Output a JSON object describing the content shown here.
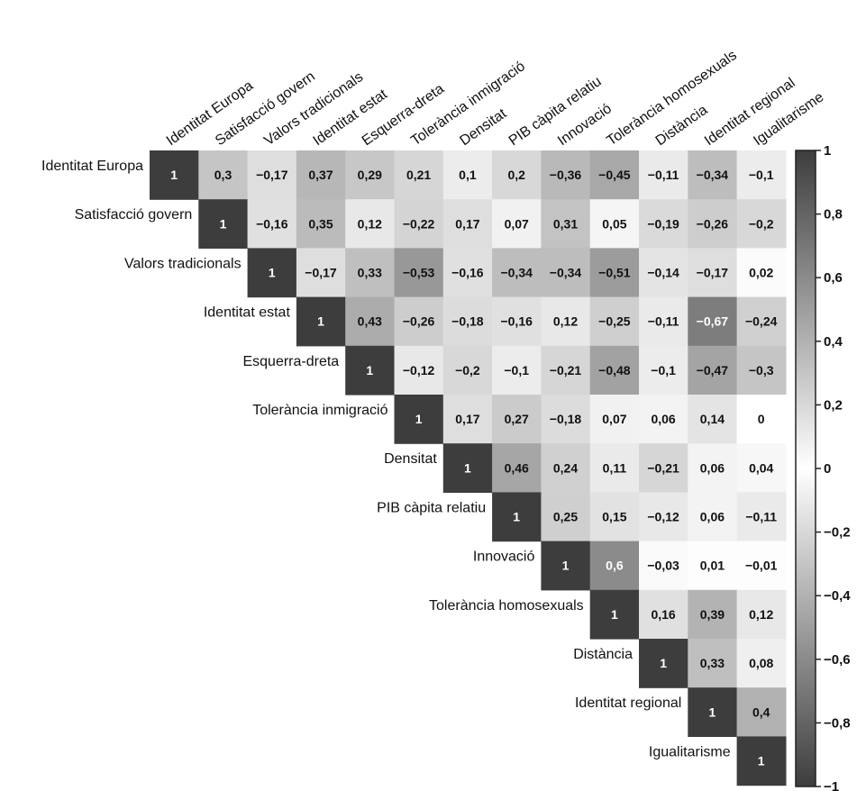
{
  "chart_data": {
    "type": "heatmap",
    "title": "",
    "variables": [
      "Identitat Europa",
      "Satisfacció govern",
      "Valors tradicionals",
      "Identitat estat",
      "Esquerra-dreta",
      "Tolerància inmigració",
      "Densitat",
      "PIB càpita relatiu",
      "Innovació",
      "Tolerància homosexuals",
      "Distància",
      "Identitat regional",
      "Igualitarisme"
    ],
    "matrix_upper": [
      [
        "1",
        "0,3",
        "-0,17",
        "0,37",
        "0,29",
        "0,21",
        "0,1",
        "0,2",
        "-0,36",
        "-0,45",
        "-0,11",
        "-0,34",
        "-0,1"
      ],
      [
        "1",
        "-0,16",
        "0,35",
        "0,12",
        "-0,22",
        "0,17",
        "0,07",
        "0,31",
        "0,05",
        "-0,19",
        "-0,26",
        "-0,2"
      ],
      [
        "1",
        "-0,17",
        "0,33",
        "-0,53",
        "-0,16",
        "-0,34",
        "-0,34",
        "-0,51",
        "-0,14",
        "-0,17",
        "0,02"
      ],
      [
        "1",
        "0,43",
        "-0,26",
        "-0,18",
        "-0,16",
        "0,12",
        "-0,25",
        "-0,11",
        "-0,67",
        "-0,24"
      ],
      [
        "1",
        "-0,12",
        "-0,2",
        "-0,1",
        "-0,21",
        "-0,48",
        "-0,1",
        "-0,47",
        "-0,3"
      ],
      [
        "1",
        "0,17",
        "0,27",
        "-0,18",
        "0,07",
        "0,06",
        "0,14",
        "0"
      ],
      [
        "1",
        "0,46",
        "0,24",
        "0,11",
        "-0,21",
        "0,06",
        "0,04"
      ],
      [
        "1",
        "0,25",
        "0,15",
        "-0,12",
        "0,06",
        "-0,11"
      ],
      [
        "1",
        "0,6",
        "-0,03",
        "0,01",
        "-0,01"
      ],
      [
        "1",
        "0,16",
        "0,39",
        "0,12"
      ],
      [
        "1",
        "0,33",
        "0,08"
      ],
      [
        "1",
        "0,4"
      ],
      [
        "1"
      ]
    ],
    "colorbar": {
      "range": [
        -1,
        1
      ],
      "ticks": [
        "1",
        "0,8",
        "0,6",
        "0,4",
        "0,2",
        "0",
        "-0,2",
        "-0,4",
        "-0,6",
        "-0,8",
        "-1"
      ],
      "color_extreme": "#3d3d3d",
      "color_zero": "#ffffff",
      "placement": "right"
    }
  }
}
